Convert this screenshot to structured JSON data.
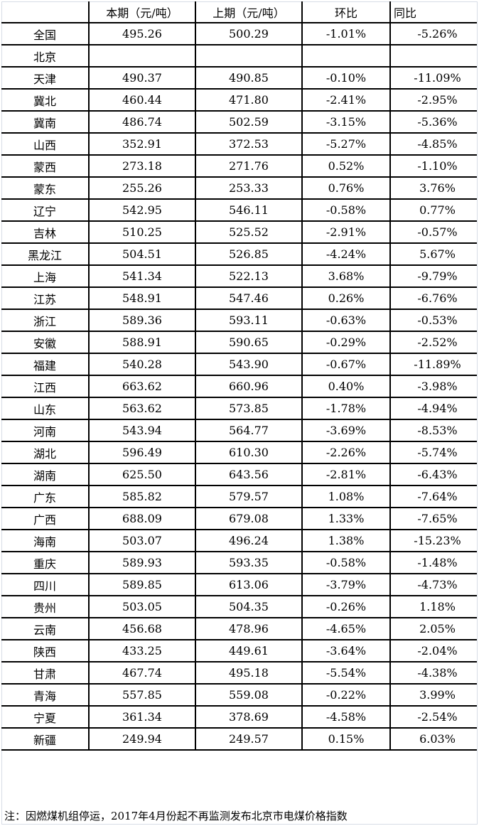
{
  "table": {
    "headers": [
      "",
      "本期（元/吨）",
      "上期（元/吨）",
      "环比",
      "同比"
    ],
    "rows": [
      [
        "全国",
        "495.26",
        "500.29",
        "-1.01%",
        "-5.26%"
      ],
      [
        "北京",
        "",
        "",
        "",
        ""
      ],
      [
        "天津",
        "490.37",
        "490.85",
        "-0.10%",
        "-11.09%"
      ],
      [
        "冀北",
        "460.44",
        "471.80",
        "-2.41%",
        "-2.95%"
      ],
      [
        "冀南",
        "486.74",
        "502.59",
        "-3.15%",
        "-5.36%"
      ],
      [
        "山西",
        "352.91",
        "372.53",
        "-5.27%",
        "-4.85%"
      ],
      [
        "蒙西",
        "273.18",
        "271.76",
        "0.52%",
        "-1.10%"
      ],
      [
        "蒙东",
        "255.26",
        "253.33",
        "0.76%",
        "3.76%"
      ],
      [
        "辽宁",
        "542.95",
        "546.11",
        "-0.58%",
        "0.77%"
      ],
      [
        "吉林",
        "510.25",
        "525.52",
        "-2.91%",
        "-0.57%"
      ],
      [
        "黑龙江",
        "504.51",
        "526.85",
        "-4.24%",
        "5.67%"
      ],
      [
        "上海",
        "541.34",
        "522.13",
        "3.68%",
        "-9.79%"
      ],
      [
        "江苏",
        "548.91",
        "547.46",
        "0.26%",
        "-6.76%"
      ],
      [
        "浙江",
        "589.36",
        "593.11",
        "-0.63%",
        "-0.53%"
      ],
      [
        "安徽",
        "588.91",
        "590.65",
        "-0.29%",
        "-2.52%"
      ],
      [
        "福建",
        "540.28",
        "543.90",
        "-0.67%",
        "-11.89%"
      ],
      [
        "江西",
        "663.62",
        "660.96",
        "0.40%",
        "-3.98%"
      ],
      [
        "山东",
        "563.62",
        "573.85",
        "-1.78%",
        "-4.94%"
      ],
      [
        "河南",
        "543.94",
        "564.77",
        "-3.69%",
        "-8.53%"
      ],
      [
        "湖北",
        "596.49",
        "610.30",
        "-2.26%",
        "-5.74%"
      ],
      [
        "湖南",
        "625.50",
        "643.56",
        "-2.81%",
        "-6.43%"
      ],
      [
        "广东",
        "585.82",
        "579.57",
        "1.08%",
        "-7.64%"
      ],
      [
        "广西",
        "688.09",
        "679.08",
        "1.33%",
        "-7.65%"
      ],
      [
        "海南",
        "503.07",
        "496.24",
        "1.38%",
        "-15.23%"
      ],
      [
        "重庆",
        "589.93",
        "593.35",
        "-0.58%",
        "-1.48%"
      ],
      [
        "四川",
        "589.85",
        "613.06",
        "-3.79%",
        "-4.73%"
      ],
      [
        "贵州",
        "503.05",
        "504.35",
        "-0.26%",
        "1.18%"
      ],
      [
        "云南",
        "456.68",
        "478.96",
        "-4.65%",
        "2.05%"
      ],
      [
        "陕西",
        "433.25",
        "449.61",
        "-3.64%",
        "-2.04%"
      ],
      [
        "甘肃",
        "467.74",
        "495.18",
        "-5.54%",
        "-4.38%"
      ],
      [
        "青海",
        "557.85",
        "559.08",
        "-0.22%",
        "3.99%"
      ],
      [
        "宁夏",
        "361.34",
        "378.69",
        "-4.58%",
        "-2.54%"
      ],
      [
        "新疆",
        "249.94",
        "249.57",
        "0.15%",
        "6.03%"
      ]
    ]
  },
  "note": "注：因燃煤机组停运，2017年4月份起不再监测发布北京市电煤价格指数"
}
